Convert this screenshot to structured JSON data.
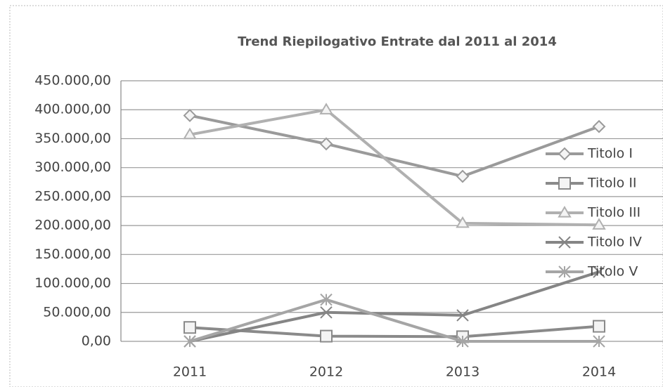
{
  "chart_data": {
    "type": "line",
    "title": "Trend Riepilogativo Entrate dal 2011 al 2014",
    "categories": [
      "2011",
      "2012",
      "2013",
      "2014"
    ],
    "series": [
      {
        "name": "Titolo I",
        "color": "#9a9a9a",
        "marker": "diamond",
        "values": [
          390000,
          341000,
          285000,
          371000
        ]
      },
      {
        "name": "Titolo II",
        "color": "#8a8a8a",
        "marker": "square",
        "values": [
          24000,
          9000,
          8000,
          26000
        ]
      },
      {
        "name": "Titolo III",
        "color": "#b0b0b0",
        "marker": "triangle",
        "values": [
          357000,
          400000,
          204000,
          201000
        ]
      },
      {
        "name": "Titolo IV",
        "color": "#858585",
        "marker": "x",
        "values": [
          0,
          50000,
          45000,
          120000
        ]
      },
      {
        "name": "Titolo V",
        "color": "#a5a5a5",
        "marker": "star",
        "values": [
          0,
          72000,
          0,
          0
        ]
      }
    ],
    "ylim": [
      0,
      450000
    ],
    "yticks": [
      {
        "value": 0,
        "label": "0,00"
      },
      {
        "value": 50000,
        "label": "50.000,00"
      },
      {
        "value": 100000,
        "label": "100.000,00"
      },
      {
        "value": 150000,
        "label": "150.000,00"
      },
      {
        "value": 200000,
        "label": "200.000,00"
      },
      {
        "value": 250000,
        "label": "250.000,00"
      },
      {
        "value": 300000,
        "label": "300.000,00"
      },
      {
        "value": 350000,
        "label": "350.000,00"
      },
      {
        "value": 400000,
        "label": "400.000,00"
      },
      {
        "value": 450000,
        "label": "450.000,00"
      }
    ],
    "grid": true,
    "legend": "right"
  }
}
